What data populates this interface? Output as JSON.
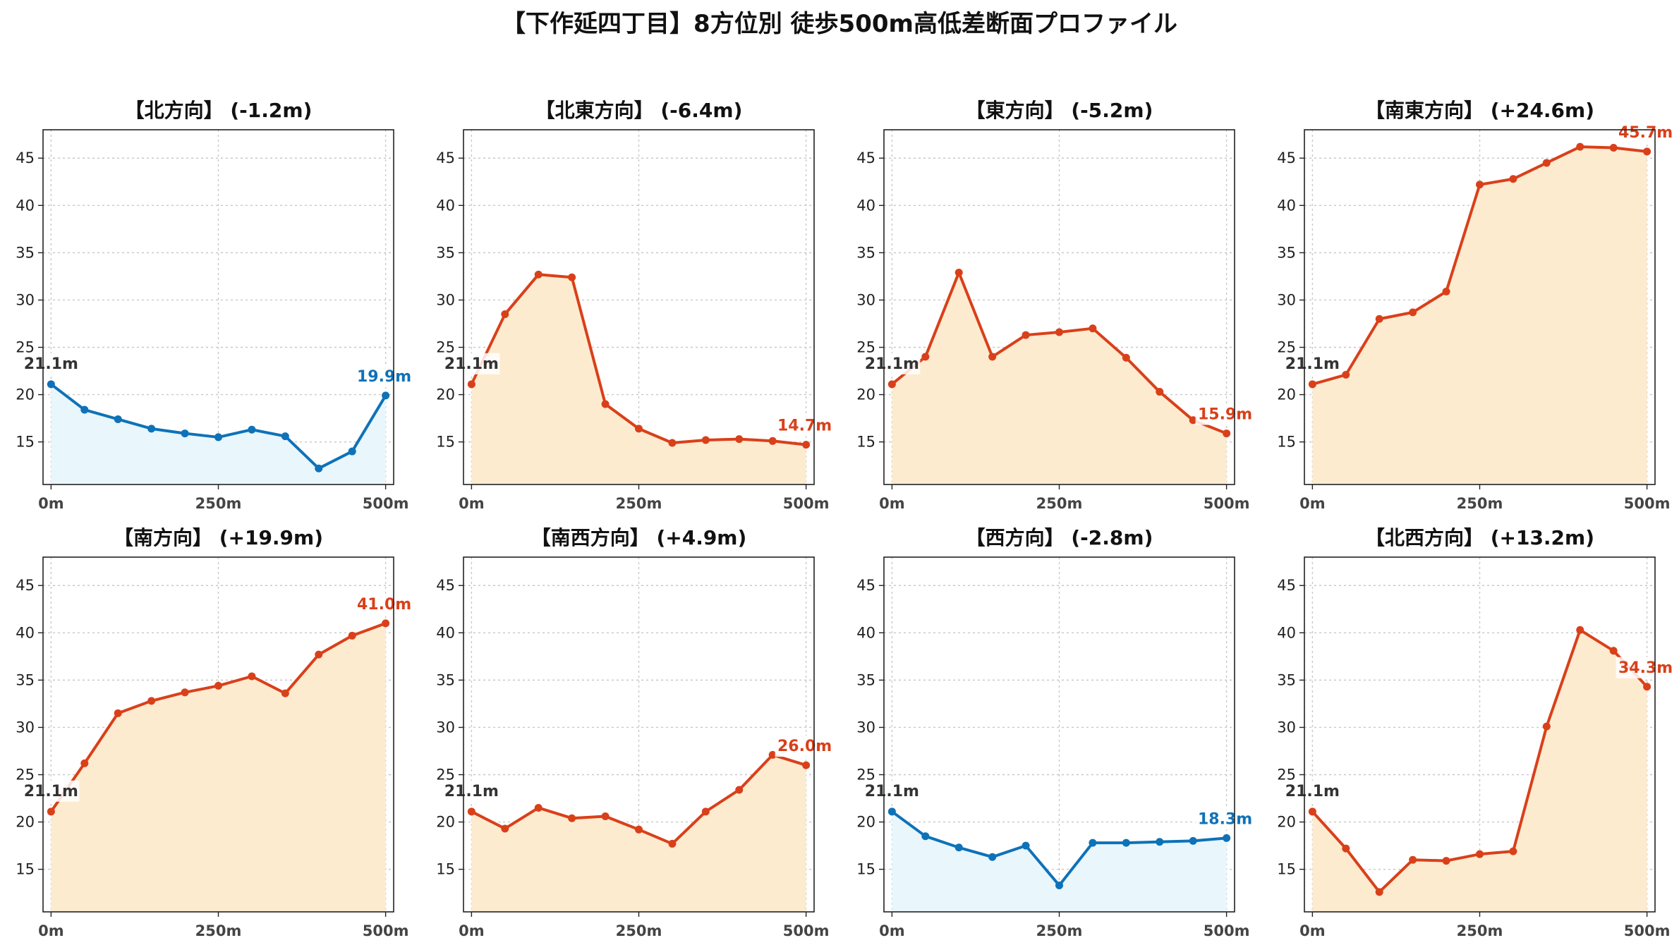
{
  "chart_data": {
    "type": "line",
    "title": "【下作延四丁目】8方位別 徒歩500m高低差断面プロファイル",
    "x": [
      0,
      50,
      100,
      150,
      200,
      250,
      300,
      350,
      400,
      450,
      500
    ],
    "xticks": [
      0,
      250,
      500
    ],
    "xtick_labels": [
      "0m",
      "250m",
      "500m"
    ],
    "yticks": [
      15,
      20,
      25,
      30,
      35,
      40,
      45
    ],
    "ylim": [
      10.5,
      48
    ],
    "xlim": [
      -12,
      512
    ],
    "grid": true,
    "colors": {
      "descent_line": "#0e72b8",
      "descent_fill": "#e9f6fc",
      "ascent_line": "#d9401a",
      "ascent_fill": "#fdebd0",
      "start_label": "#333333"
    },
    "panels": [
      {
        "direction": "北方向",
        "title": "【北方向】 (-1.2m)",
        "trend": "descent",
        "values": [
          21.1,
          18.4,
          17.4,
          16.4,
          15.9,
          15.5,
          16.3,
          15.6,
          12.2,
          14.0,
          19.9
        ],
        "start_label": "21.1m",
        "end_label": "19.9m"
      },
      {
        "direction": "北東方向",
        "title": "【北東方向】 (-6.4m)",
        "trend": "ascent",
        "values": [
          21.1,
          28.5,
          32.7,
          32.4,
          19.0,
          16.4,
          14.9,
          15.2,
          15.3,
          15.1,
          14.7
        ],
        "start_label": "21.1m",
        "end_label": "14.7m"
      },
      {
        "direction": "東方向",
        "title": "【東方向】 (-5.2m)",
        "trend": "ascent",
        "values": [
          21.1,
          24.0,
          32.9,
          24.0,
          26.3,
          26.6,
          27.0,
          23.9,
          20.3,
          17.3,
          15.9
        ],
        "start_label": "21.1m",
        "end_label": "15.9m"
      },
      {
        "direction": "南東方向",
        "title": "【南東方向】 (+24.6m)",
        "trend": "ascent",
        "values": [
          21.1,
          22.1,
          28.0,
          28.7,
          30.9,
          42.2,
          42.8,
          44.5,
          46.2,
          46.1,
          45.7
        ],
        "start_label": "21.1m",
        "end_label": "45.7m"
      },
      {
        "direction": "南方向",
        "title": "【南方向】 (+19.9m)",
        "trend": "ascent",
        "values": [
          21.1,
          26.2,
          31.5,
          32.8,
          33.7,
          34.4,
          35.4,
          33.6,
          37.7,
          39.7,
          41.0
        ],
        "start_label": "21.1m",
        "end_label": "41.0m"
      },
      {
        "direction": "南西方向",
        "title": "【南西方向】 (+4.9m)",
        "trend": "ascent",
        "values": [
          21.1,
          19.3,
          21.5,
          20.4,
          20.6,
          19.2,
          17.7,
          21.1,
          23.4,
          27.1,
          26.0
        ],
        "start_label": "21.1m",
        "end_label": "26.0m"
      },
      {
        "direction": "西方向",
        "title": "【西方向】 (-2.8m)",
        "trend": "descent",
        "values": [
          21.1,
          18.5,
          17.3,
          16.3,
          17.5,
          13.3,
          17.8,
          17.8,
          17.9,
          18.0,
          18.3
        ],
        "start_label": "21.1m",
        "end_label": "18.3m"
      },
      {
        "direction": "北西方向",
        "title": "【北西方向】 (+13.2m)",
        "trend": "ascent",
        "values": [
          21.1,
          17.2,
          12.6,
          16.0,
          15.9,
          16.6,
          16.9,
          30.1,
          40.3,
          38.1,
          34.3
        ],
        "start_label": "21.1m",
        "end_label": "34.3m"
      }
    ]
  }
}
